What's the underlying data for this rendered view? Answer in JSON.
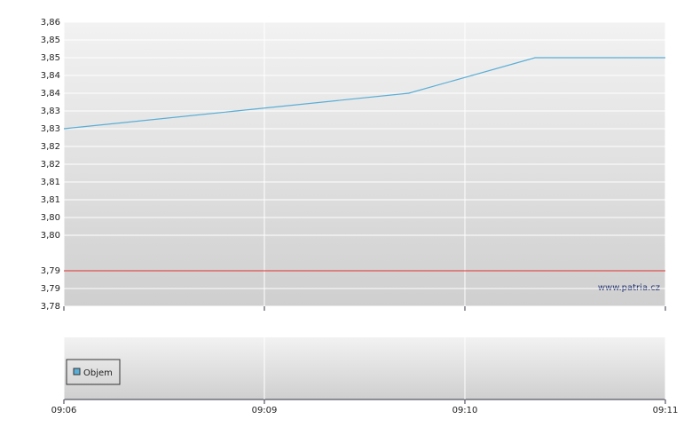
{
  "chart_data": {
    "type": "line",
    "x": [
      0,
      1.72,
      2.35,
      3
    ],
    "xlim": [
      0,
      3
    ],
    "xticks": [
      {
        "value": 0,
        "label": "09:06"
      },
      {
        "value": 1,
        "label": "09:09"
      },
      {
        "value": 2,
        "label": "09:10"
      },
      {
        "value": 3,
        "label": "09:11"
      }
    ],
    "series": [
      {
        "name": "Objem",
        "color": "#5aaed6",
        "values": [
          3.83,
          3.84,
          3.85,
          3.85
        ]
      }
    ],
    "ylim": [
      3.78,
      3.86
    ],
    "yticks": [
      {
        "value": 3.86,
        "label": "3,86"
      },
      {
        "value": 3.855,
        "label": "3,85"
      },
      {
        "value": 3.85,
        "label": "3,85"
      },
      {
        "value": 3.845,
        "label": "3,84"
      },
      {
        "value": 3.84,
        "label": "3,84"
      },
      {
        "value": 3.835,
        "label": "3,83"
      },
      {
        "value": 3.83,
        "label": "3,83"
      },
      {
        "value": 3.825,
        "label": "3,82"
      },
      {
        "value": 3.82,
        "label": "3,82"
      },
      {
        "value": 3.815,
        "label": "3,81"
      },
      {
        "value": 3.81,
        "label": "3,81"
      },
      {
        "value": 3.805,
        "label": "3,80"
      },
      {
        "value": 3.8,
        "label": "3,80"
      },
      {
        "value": 3.79,
        "label": "3,79"
      },
      {
        "value": 3.785,
        "label": "3,79"
      },
      {
        "value": 3.78,
        "label": "3,78"
      }
    ],
    "reference_line": {
      "value": 3.79,
      "color": "#e03030"
    },
    "watermark": "www.patria.cz",
    "grid": true
  }
}
